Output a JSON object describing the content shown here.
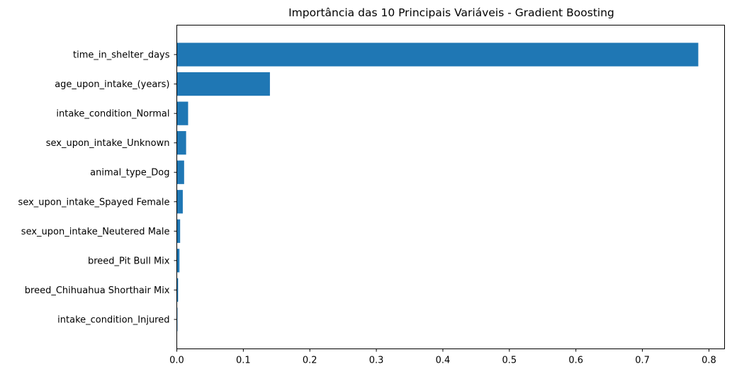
{
  "chart_data": {
    "type": "bar",
    "orientation": "horizontal",
    "title": "Importância das 10 Principais Variáveis - Gradient Boosting",
    "xlabel": "",
    "ylabel": "",
    "categories": [
      "time_in_shelter_days",
      "age_upon_intake_(years)",
      "intake_condition_Normal",
      "sex_upon_intake_Unknown",
      "animal_type_Dog",
      "sex_upon_intake_Spayed Female",
      "sex_upon_intake_Neutered Male",
      "breed_Pit Bull Mix",
      "breed_Chihuahua Shorthair Mix",
      "intake_condition_Injured"
    ],
    "values": [
      0.784,
      0.14,
      0.017,
      0.014,
      0.011,
      0.009,
      0.005,
      0.004,
      0.002,
      0.001
    ],
    "xlim": [
      0,
      0.8235
    ],
    "xticks": [
      0.0,
      0.1,
      0.2,
      0.3,
      0.4,
      0.5,
      0.6,
      0.7,
      0.8
    ],
    "xtick_labels": [
      "0.0",
      "0.1",
      "0.2",
      "0.3",
      "0.4",
      "0.5",
      "0.6",
      "0.7",
      "0.8"
    ],
    "bar_color": "#1f77b4",
    "grid": false,
    "legend": "none"
  }
}
